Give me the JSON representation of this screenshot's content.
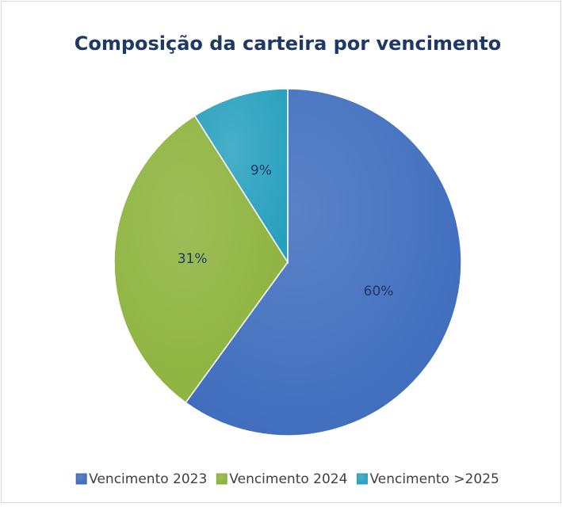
{
  "chart_data": {
    "type": "pie",
    "title": "Composição da carteira por vencimento",
    "categories": [
      "Vencimento 2023",
      "Vencimento 2024",
      "Vencimento >2025"
    ],
    "values": [
      60,
      31,
      9
    ],
    "value_labels": [
      "60%",
      "31%",
      "9%"
    ],
    "colors": [
      "#3d6cbd",
      "#8cb23b",
      "#27a0be"
    ],
    "legend": "bottom"
  }
}
